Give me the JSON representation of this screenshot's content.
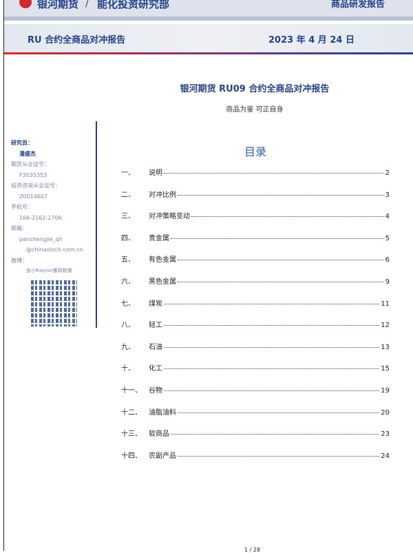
{
  "header": {
    "brand": "银河期货",
    "separator": "/",
    "department": "能化投资研究部",
    "report_type": "商品研发报告"
  },
  "banner": {
    "title": "RU 合约全商品对冲报告",
    "date": "2023 年 4 月 24 日"
  },
  "document": {
    "title": "银河期货 RU09 合约全商品对冲报告",
    "subtitle": "商品为鉴  可正自身"
  },
  "analyst": {
    "role_label": "研究员：",
    "name": "潘盛杰",
    "license_label": "期货从业证号：",
    "license": "F3035353",
    "consult_label": "投资咨询从业证号：",
    "consult": "Z0014607",
    "phone_label": "手机号：",
    "phone": "166-2162-2706",
    "email_label": "邮箱：",
    "email_1": "panshengjie_qh",
    "email_2": "@chinastock.com.cn",
    "weibo_label": "微博：",
    "weibo": "张小Raynor搬砖数据"
  },
  "toc": {
    "heading": "目录",
    "items": [
      {
        "num": "一、",
        "label": "说明",
        "page": "2"
      },
      {
        "num": "二、",
        "label": "对冲比例",
        "page": "3"
      },
      {
        "num": "三、",
        "label": "对冲策略变动",
        "page": "4"
      },
      {
        "num": "四、",
        "label": "贵金属",
        "page": "5"
      },
      {
        "num": "五、",
        "label": "有色金属",
        "page": "6"
      },
      {
        "num": "六、",
        "label": "黑色金属",
        "page": "9"
      },
      {
        "num": "七、",
        "label": "煤炭",
        "page": "11"
      },
      {
        "num": "八、",
        "label": "轻工",
        "page": "12"
      },
      {
        "num": "九、",
        "label": "石油",
        "page": "13"
      },
      {
        "num": "十、",
        "label": "化工",
        "page": "15"
      },
      {
        "num": "十一、",
        "label": "谷物",
        "page": "19"
      },
      {
        "num": "十二、",
        "label": "油脂油料",
        "page": "20"
      },
      {
        "num": "十三、",
        "label": "软商品",
        "page": "23"
      },
      {
        "num": "十四、",
        "label": "农副产品",
        "page": "24"
      }
    ]
  },
  "footer": {
    "page": "1 / 28"
  }
}
